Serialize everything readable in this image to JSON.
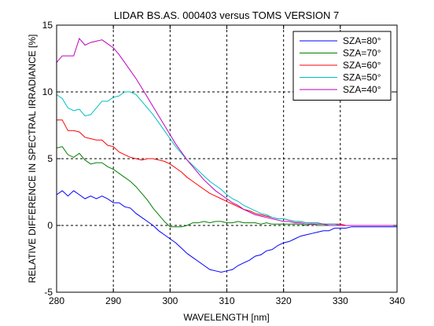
{
  "chart_data": {
    "type": "line",
    "title": "LIDAR BS.AS. 000403 versus TOMS VERSION 7",
    "xlabel": "WAVELENGTH [nm]",
    "ylabel": "RELATIVE DIFFERENCE IN SPECTRAL IRRADIANCE [%]",
    "xlim": [
      280,
      340
    ],
    "ylim": [
      -5,
      15
    ],
    "xticks": [
      280,
      290,
      300,
      310,
      320,
      330,
      340
    ],
    "yticks": [
      -5,
      0,
      5,
      10,
      15
    ],
    "grid": true,
    "grid_style": "dashed",
    "legend_position": "top-right",
    "series": [
      {
        "name": "SZA=80°",
        "color": "#0000ff",
        "x": [
          280,
          281,
          282,
          283,
          284,
          285,
          286,
          287,
          288,
          289,
          290,
          291,
          292,
          293,
          294,
          295,
          296,
          297,
          298,
          299,
          300,
          301,
          302,
          303,
          304,
          305,
          306,
          307,
          308,
          309,
          310,
          311,
          312,
          313,
          314,
          315,
          316,
          317,
          318,
          319,
          320,
          321,
          322,
          323,
          324,
          325,
          326,
          327,
          328,
          329,
          330,
          331,
          332,
          333,
          334,
          335,
          336,
          337,
          338,
          339,
          340
        ],
        "y": [
          2.3,
          2.6,
          2.2,
          2.6,
          2.3,
          2.0,
          2.2,
          2.0,
          2.2,
          2.0,
          1.7,
          1.7,
          1.4,
          1.3,
          0.9,
          0.6,
          0.3,
          0.0,
          -0.4,
          -0.7,
          -1.0,
          -1.3,
          -1.7,
          -2.1,
          -2.4,
          -2.7,
          -3.0,
          -3.3,
          -3.4,
          -3.5,
          -3.4,
          -3.3,
          -3.0,
          -2.8,
          -2.6,
          -2.3,
          -2.2,
          -1.9,
          -1.8,
          -1.5,
          -1.3,
          -1.2,
          -1.0,
          -0.8,
          -0.7,
          -0.6,
          -0.5,
          -0.4,
          -0.4,
          -0.2,
          -0.2,
          -0.2,
          -0.1,
          -0.1,
          -0.1,
          -0.1,
          -0.1,
          -0.1,
          -0.1,
          -0.1,
          -0.1
        ]
      },
      {
        "name": "SZA=70°",
        "color": "#008000",
        "x": [
          280,
          281,
          282,
          283,
          284,
          285,
          286,
          287,
          288,
          289,
          290,
          291,
          292,
          293,
          294,
          295,
          296,
          297,
          298,
          299,
          300,
          301,
          302,
          303,
          304,
          305,
          306,
          307,
          308,
          309,
          310,
          311,
          312,
          313,
          314,
          315,
          316,
          317,
          318,
          319,
          320,
          321,
          322,
          323,
          324,
          325,
          326,
          327,
          328,
          329,
          330,
          331,
          332,
          333,
          334,
          335,
          336,
          337,
          338,
          339,
          340
        ],
        "y": [
          5.8,
          5.9,
          5.3,
          5.1,
          5.4,
          4.9,
          4.6,
          4.7,
          4.7,
          4.4,
          4.2,
          3.9,
          3.6,
          3.3,
          2.9,
          2.4,
          1.9,
          1.3,
          0.8,
          0.3,
          -0.1,
          -0.1,
          -0.1,
          0.0,
          0.2,
          0.2,
          0.3,
          0.2,
          0.3,
          0.3,
          0.2,
          0.2,
          0.3,
          0.2,
          0.2,
          0.2,
          0.1,
          0.2,
          0.1,
          0.1,
          0.1,
          0.1,
          0.1,
          0.1,
          0.0,
          0.1,
          0.0,
          0.0,
          0.0,
          0.0,
          0.0,
          0.0,
          0.0,
          0.0,
          0.0,
          0.0,
          0.0,
          0.0,
          0.0,
          0.0,
          0.0
        ]
      },
      {
        "name": "SZA=60°",
        "color": "#ff0000",
        "x": [
          280,
          281,
          282,
          283,
          284,
          285,
          286,
          287,
          288,
          289,
          290,
          291,
          292,
          293,
          294,
          295,
          296,
          297,
          298,
          299,
          300,
          301,
          302,
          303,
          304,
          305,
          306,
          307,
          308,
          309,
          310,
          311,
          312,
          313,
          314,
          315,
          316,
          317,
          318,
          319,
          320,
          321,
          322,
          323,
          324,
          325,
          326,
          327,
          328,
          329,
          330,
          331,
          332,
          333,
          334,
          335,
          336,
          337,
          338,
          339,
          340
        ],
        "y": [
          7.9,
          7.9,
          7.1,
          7.1,
          7.0,
          6.6,
          6.5,
          6.4,
          6.4,
          6.0,
          5.9,
          5.5,
          5.3,
          5.1,
          5.0,
          4.9,
          5.0,
          5.0,
          4.9,
          4.8,
          4.6,
          4.3,
          4.0,
          3.6,
          3.3,
          3.0,
          2.7,
          2.4,
          2.2,
          2.0,
          1.8,
          1.6,
          1.4,
          1.2,
          1.1,
          0.9,
          0.8,
          0.7,
          0.6,
          0.5,
          0.5,
          0.4,
          0.3,
          0.3,
          0.2,
          0.2,
          0.2,
          0.1,
          0.1,
          0.1,
          0.1,
          0.0,
          0.0,
          0.0,
          0.0,
          0.0,
          0.0,
          0.0,
          0.0,
          0.0,
          0.0
        ]
      },
      {
        "name": "SZA=50°",
        "color": "#00bfbf",
        "x": [
          280,
          281,
          282,
          283,
          284,
          285,
          286,
          287,
          288,
          289,
          290,
          291,
          292,
          293,
          294,
          295,
          296,
          297,
          298,
          299,
          300,
          301,
          302,
          303,
          304,
          305,
          306,
          307,
          308,
          309,
          310,
          311,
          312,
          313,
          314,
          315,
          316,
          317,
          318,
          319,
          320,
          321,
          322,
          323,
          324,
          325,
          326,
          327,
          328,
          329,
          330,
          331,
          332,
          333,
          334,
          335,
          336,
          337,
          338,
          339,
          340
        ],
        "y": [
          9.8,
          9.5,
          8.8,
          8.6,
          8.7,
          8.2,
          8.3,
          8.8,
          9.3,
          9.3,
          9.6,
          9.7,
          10.0,
          10.0,
          9.8,
          9.3,
          8.8,
          8.3,
          7.7,
          7.1,
          6.5,
          5.9,
          5.4,
          4.9,
          4.5,
          4.1,
          3.7,
          3.3,
          3.0,
          2.7,
          2.3,
          2.0,
          1.8,
          1.5,
          1.3,
          1.1,
          0.9,
          0.8,
          0.6,
          0.5,
          0.5,
          0.4,
          0.3,
          0.3,
          0.2,
          0.2,
          0.2,
          0.1,
          0.1,
          0.1,
          0.0,
          0.0,
          0.0,
          0.0,
          0.0,
          0.0,
          0.0,
          0.0,
          0.0,
          0.0,
          0.0
        ]
      },
      {
        "name": "SZA=40°",
        "color": "#bf00bf",
        "x": [
          280,
          281,
          282,
          283,
          284,
          285,
          286,
          287,
          288,
          289,
          290,
          291,
          292,
          293,
          294,
          295,
          296,
          297,
          298,
          299,
          300,
          301,
          302,
          303,
          304,
          305,
          306,
          307,
          308,
          309,
          310,
          311,
          312,
          313,
          314,
          315,
          316,
          317,
          318,
          319,
          320,
          321,
          322,
          323,
          324,
          325,
          326,
          327,
          328,
          329,
          330,
          331,
          332,
          333,
          334,
          335,
          336,
          337,
          338,
          339,
          340
        ],
        "y": [
          12.2,
          12.7,
          12.7,
          12.7,
          14.0,
          13.5,
          13.7,
          13.8,
          13.9,
          13.6,
          13.3,
          12.8,
          12.2,
          11.6,
          11.0,
          10.3,
          9.6,
          8.9,
          8.2,
          7.5,
          6.8,
          6.1,
          5.5,
          4.9,
          4.4,
          3.9,
          3.4,
          3.0,
          2.6,
          2.3,
          2.0,
          1.7,
          1.5,
          1.2,
          1.0,
          0.8,
          0.7,
          0.6,
          0.5,
          0.4,
          0.3,
          0.3,
          0.2,
          0.2,
          0.1,
          0.1,
          0.1,
          0.1,
          0.0,
          0.0,
          0.0,
          0.0,
          0.0,
          0.0,
          0.0,
          0.0,
          0.0,
          0.0,
          0.0,
          0.0,
          0.0
        ]
      }
    ]
  }
}
